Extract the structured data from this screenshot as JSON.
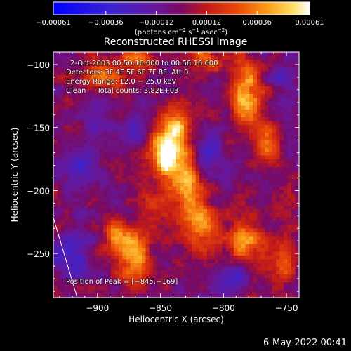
{
  "chart_data": {
    "type": "heatmap",
    "title": "Reconstructed RHESSI Image",
    "xlabel": "Heliocentric X (arcsec)",
    "ylabel": "Heliocentric Y (arcsec)",
    "xlim": [
      -935,
      -740
    ],
    "ylim": [
      -285,
      -90
    ],
    "x_ticks": [
      -900,
      -850,
      -800,
      -750
    ],
    "y_ticks": [
      -100,
      -150,
      -200,
      -250
    ],
    "x_tick_labels": [
      "−900",
      "−850",
      "−800",
      "−750"
    ],
    "y_tick_labels": [
      "−100",
      "−150",
      "−200",
      "−250"
    ],
    "colorbar": {
      "range": [
        -0.00061,
        0.00061
      ],
      "ticks": [
        -0.00061,
        -0.00036,
        -0.00012,
        0.00012,
        0.00036,
        0.00061
      ],
      "tick_labels": [
        "−0.00061",
        "−0.00036",
        "−0.00012",
        "0.00012",
        "0.00036",
        "0.00061"
      ],
      "units_label": "(photons cm",
      "units_parts": [
        "(photons cm",
        "−2",
        " s",
        "−1",
        " asec",
        "−2",
        ")"
      ]
    },
    "annotations": {
      "time_range": "2-Oct-2003 00:50:16.000 to 00:56:16.000",
      "detectors": "Detectors: 3F 4F 5F 6F 7F 8F, Att 0",
      "energy": "Energy Range: 12.0 − 25.0 keV",
      "clean": "Clean     Total counts: 3.82E+03",
      "peak": "Position of Peak = [−845,−169]"
    },
    "peak_position": [
      -845,
      -169
    ],
    "sources": [
      {
        "x": -845,
        "y": -172,
        "sx": 10,
        "sy": 14,
        "amp": 0.00061
      },
      {
        "x": -838,
        "y": -150,
        "sx": 9,
        "sy": 14,
        "amp": 0.0004
      },
      {
        "x": -830,
        "y": -198,
        "sx": 9,
        "sy": 16,
        "amp": 0.00042
      },
      {
        "x": -818,
        "y": -228,
        "sx": 10,
        "sy": 14,
        "amp": 0.00034
      },
      {
        "x": -872,
        "y": -250,
        "sx": 9,
        "sy": 14,
        "amp": 0.00046
      },
      {
        "x": -887,
        "y": -233,
        "sx": 6,
        "sy": 8,
        "amp": 0.0003
      },
      {
        "x": -782,
        "y": -122,
        "sx": 9,
        "sy": 18,
        "amp": 0.00045
      },
      {
        "x": -765,
        "y": -160,
        "sx": 7,
        "sy": 12,
        "amp": 0.00036
      },
      {
        "x": -782,
        "y": -240,
        "sx": 10,
        "sy": 12,
        "amp": 0.00036
      },
      {
        "x": -752,
        "y": -255,
        "sx": 7,
        "sy": 12,
        "amp": 0.0003
      },
      {
        "x": -898,
        "y": -108,
        "sx": 12,
        "sy": 9,
        "amp": 0.00034
      },
      {
        "x": -815,
        "y": -96,
        "sx": 10,
        "sy": 7,
        "amp": 0.00032
      },
      {
        "x": -870,
        "y": -96,
        "sx": 12,
        "sy": 6,
        "amp": 0.00028
      },
      {
        "x": -858,
        "y": -210,
        "sx": 8,
        "sy": 10,
        "amp": 0.00022
      },
      {
        "x": -920,
        "y": -250,
        "sx": 10,
        "sy": 12,
        "amp": -0.00028
      },
      {
        "x": -912,
        "y": -185,
        "sx": 9,
        "sy": 12,
        "amp": -0.00026
      },
      {
        "x": -868,
        "y": -150,
        "sx": 7,
        "sy": 10,
        "amp": -0.00026
      },
      {
        "x": -812,
        "y": -168,
        "sx": 8,
        "sy": 12,
        "amp": -0.00026
      },
      {
        "x": -752,
        "y": -110,
        "sx": 7,
        "sy": 9,
        "amp": -0.00022
      },
      {
        "x": -790,
        "y": -268,
        "sx": 9,
        "sy": 7,
        "amp": -0.0002
      },
      {
        "x": -900,
        "y": -140,
        "sx": 9,
        "sy": 9,
        "amp": -0.0002
      }
    ]
  },
  "footer": {
    "date": "6-May-2022 00:41"
  }
}
